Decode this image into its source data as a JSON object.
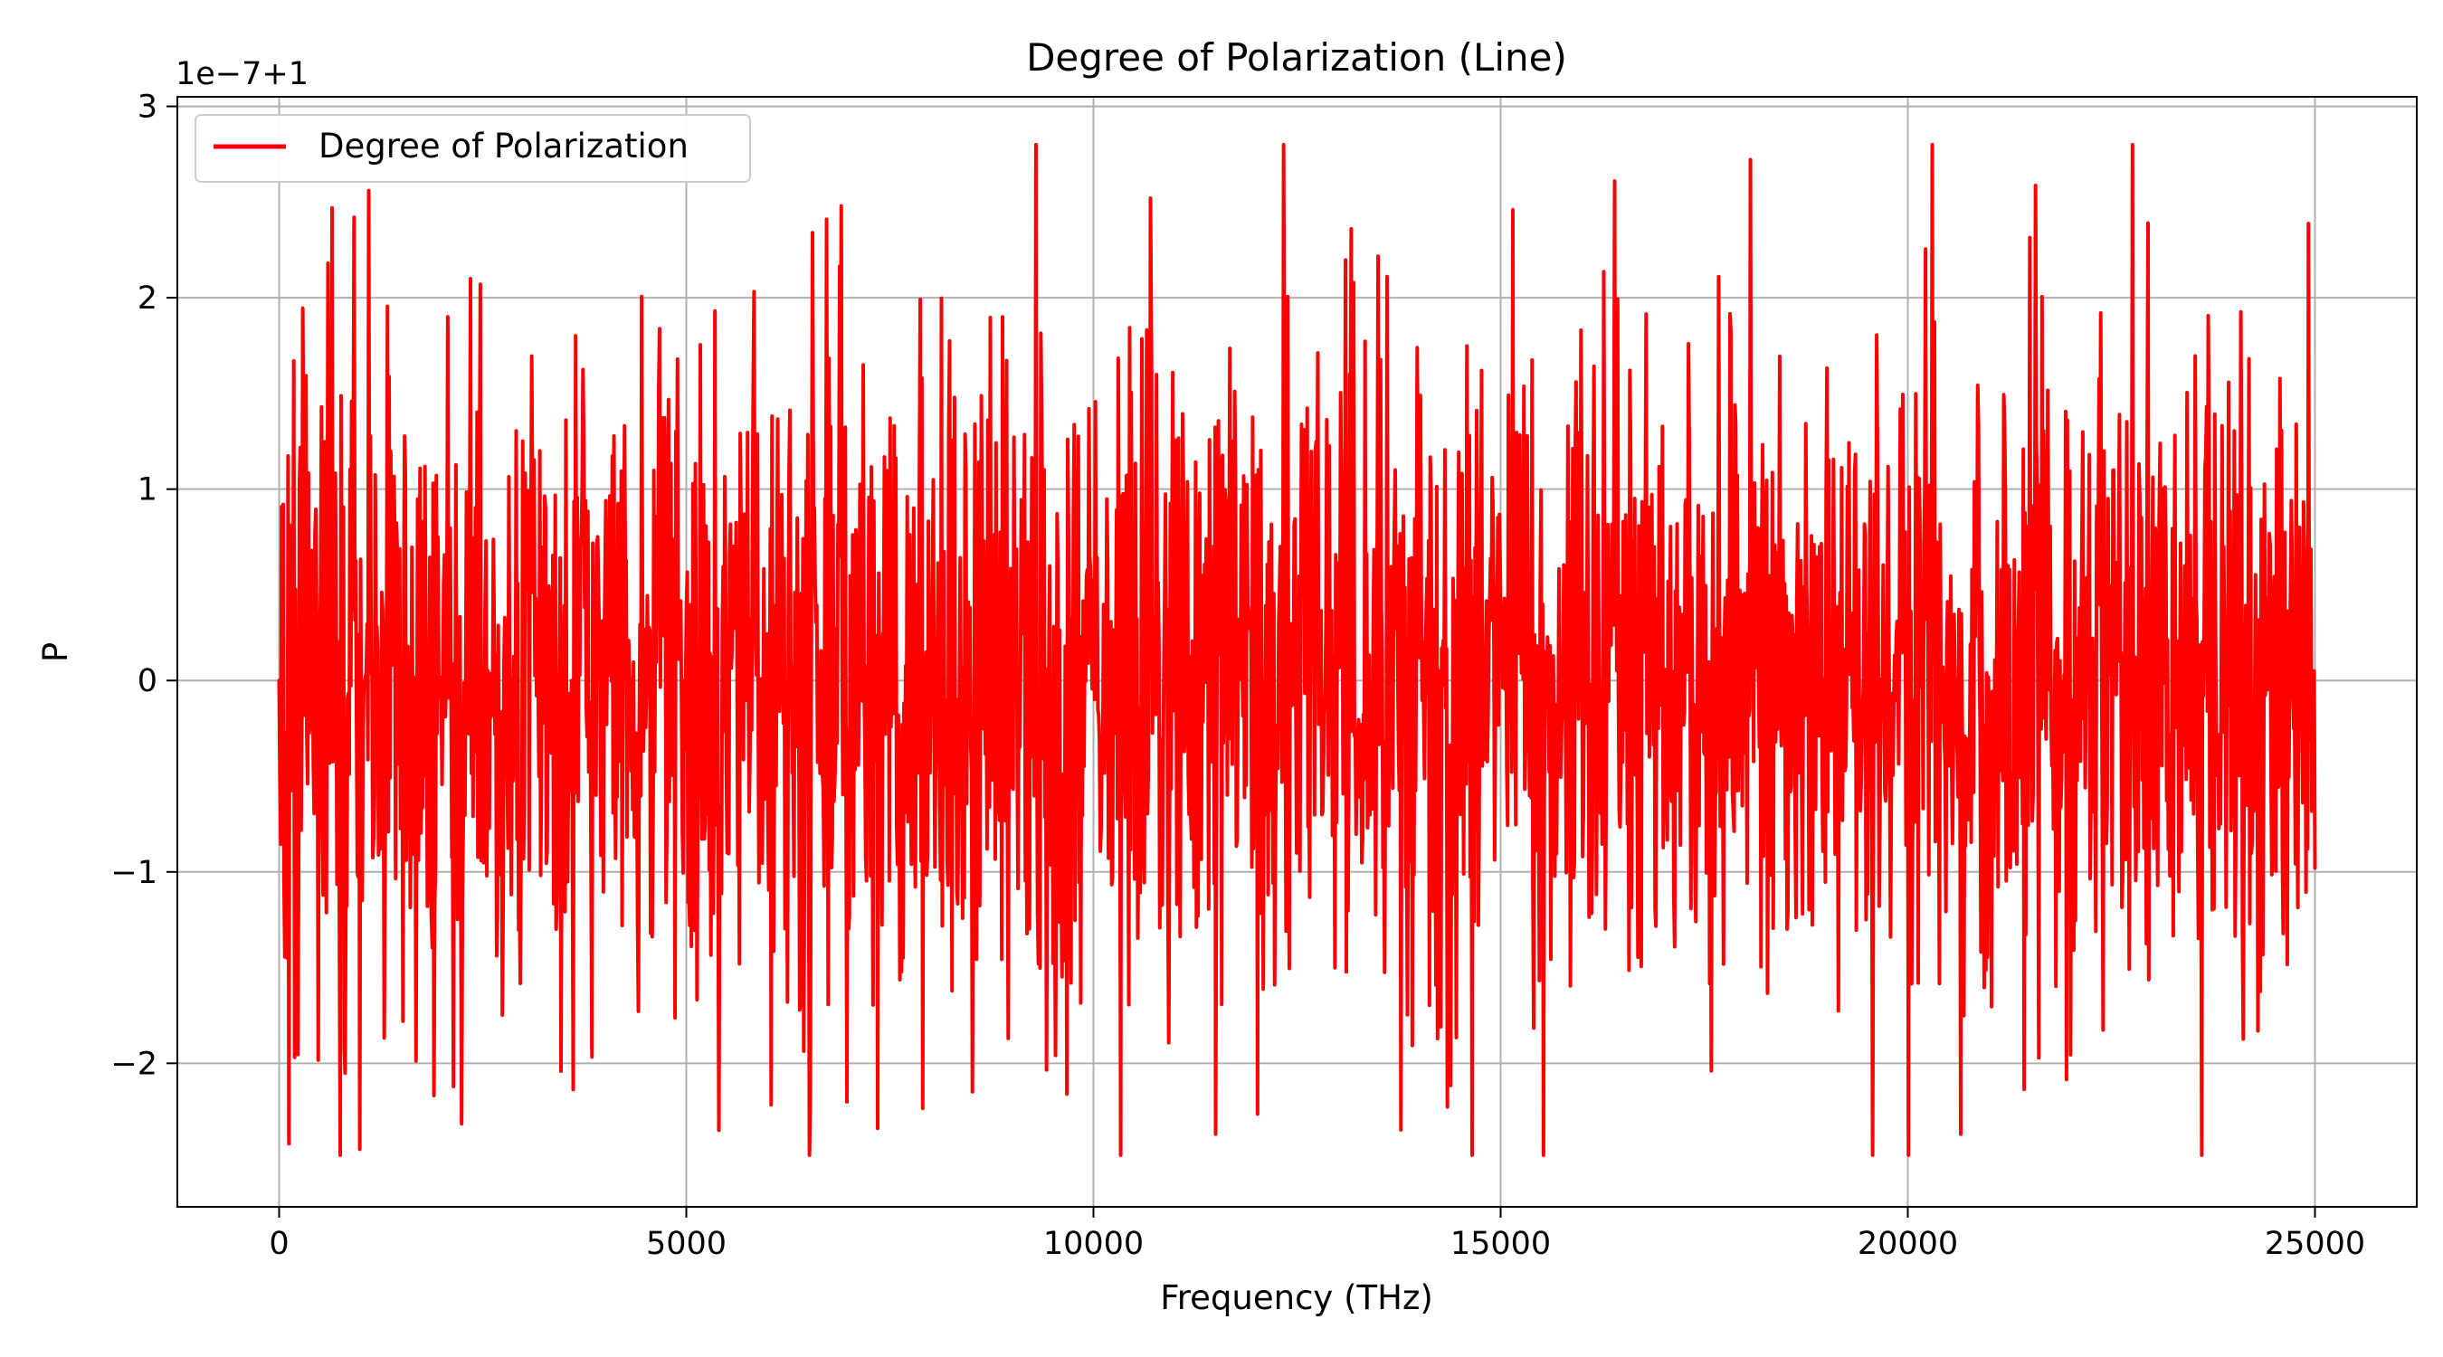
{
  "chart_data": {
    "type": "line",
    "title": "Degree of Polarization (Line)",
    "xlabel": "Frequency (THz)",
    "ylabel": "P",
    "y_offset_label": "1e−7+1",
    "xlim": [
      -1250,
      26250
    ],
    "ylim": [
      -2.75,
      3.05
    ],
    "x_ticks": [
      0,
      5000,
      10000,
      15000,
      20000,
      25000
    ],
    "x_tick_labels": [
      "0",
      "5000",
      "10000",
      "15000",
      "20000",
      "25000"
    ],
    "y_ticks": [
      -2,
      -1,
      0,
      1,
      2,
      3
    ],
    "y_tick_labels": [
      "−2",
      "−1",
      "0",
      "1",
      "2",
      "3"
    ],
    "grid": true,
    "legend_position": "upper-left",
    "series": [
      {
        "name": "Degree of Polarization",
        "color": "#ff0000",
        "x_start": 0,
        "x_end": 25000,
        "sample_count": 2500,
        "y_range_observed": [
          -2.48,
          2.8
        ],
        "representative_points": [
          {
            "x": 0,
            "y": 0.0
          },
          {
            "x": 50,
            "y": 0.92
          },
          {
            "x": 100,
            "y": -1.45
          },
          {
            "x": 120,
            "y": -2.42
          },
          {
            "x": 180,
            "y": 1.67
          },
          {
            "x": 600,
            "y": 2.18
          },
          {
            "x": 650,
            "y": 2.47
          },
          {
            "x": 1100,
            "y": 2.56
          },
          {
            "x": 2350,
            "y": 2.1
          },
          {
            "x": 5400,
            "y": -2.35
          },
          {
            "x": 6550,
            "y": 2.34
          },
          {
            "x": 7350,
            "y": -2.34
          },
          {
            "x": 10700,
            "y": 2.52
          },
          {
            "x": 11500,
            "y": -2.37
          },
          {
            "x": 14650,
            "y": -2.48
          },
          {
            "x": 15150,
            "y": 2.46
          },
          {
            "x": 16400,
            "y": 2.61
          },
          {
            "x": 20300,
            "y": 2.8
          },
          {
            "x": 20650,
            "y": -2.37
          },
          {
            "x": 22950,
            "y": 2.39
          },
          {
            "x": 25000,
            "y": -0.98
          }
        ]
      }
    ]
  }
}
